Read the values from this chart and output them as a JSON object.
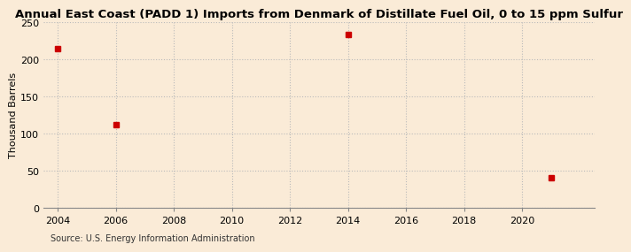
{
  "title": "Annual East Coast (PADD 1) Imports from Denmark of Distillate Fuel Oil, 0 to 15 ppm Sulfur",
  "ylabel": "Thousand Barrels",
  "source": "Source: U.S. Energy Information Administration",
  "data_x": [
    2004,
    2006,
    2014,
    2021
  ],
  "data_y": [
    214,
    112,
    234,
    41
  ],
  "marker_color": "#cc0000",
  "marker_size": 4,
  "xlim": [
    2003.5,
    2022.5
  ],
  "ylim": [
    0,
    250
  ],
  "yticks": [
    0,
    50,
    100,
    150,
    200,
    250
  ],
  "xticks": [
    2004,
    2006,
    2008,
    2010,
    2012,
    2014,
    2016,
    2018,
    2020
  ],
  "background_color": "#faebd7",
  "grid_color": "#bbbbbb",
  "title_fontsize": 9.5,
  "label_fontsize": 8,
  "tick_fontsize": 8,
  "source_fontsize": 7
}
